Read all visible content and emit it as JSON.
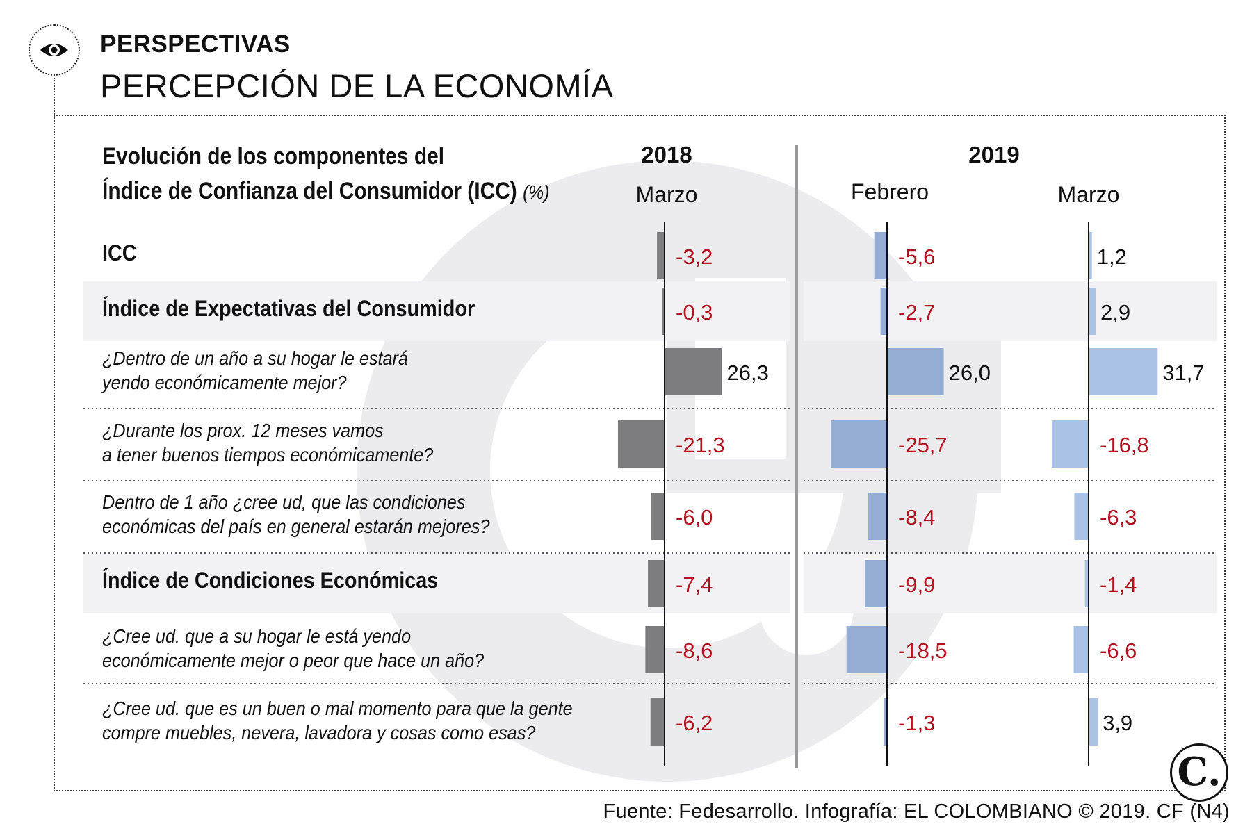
{
  "header": {
    "kicker": "PERSPECTIVAS",
    "headline": "PERCEPCIÓN DE LA ECONOMÍA"
  },
  "chart_data": {
    "type": "bar",
    "orientation": "horizontal",
    "title_line1": "Evolución de los componentes del",
    "title_line2": "Índice de Confianza del Consumidor (ICC)",
    "unit": "(%)",
    "years": [
      "2018",
      "2019"
    ],
    "series": [
      {
        "name": "Marzo 2018",
        "year": "2018",
        "month": "Marzo",
        "color": "#7d7d80",
        "values": [
          -3.2,
          -0.3,
          26.3,
          -21.3,
          -6.0,
          -7.4,
          -8.6,
          -6.2
        ],
        "labels": [
          "-3,2",
          "-0,3",
          "26,3",
          "-21,3",
          "-6,0",
          "-7,4",
          "-8,6",
          "-6,2"
        ]
      },
      {
        "name": "Febrero 2019",
        "year": "2019",
        "month": "Febrero",
        "color": "#95acd4",
        "values": [
          -5.6,
          -2.7,
          26.0,
          -25.7,
          -8.4,
          -9.9,
          -18.5,
          -1.3
        ],
        "labels": [
          "-5,6",
          "-2,7",
          "26,0",
          "-25,7",
          "-8,4",
          "-9,9",
          "-18,5",
          "-1,3"
        ]
      },
      {
        "name": "Marzo 2019",
        "year": "2019",
        "month": "Marzo",
        "color": "#a9c2e6",
        "values": [
          1.2,
          2.9,
          31.7,
          -16.8,
          -6.3,
          -1.4,
          -6.6,
          3.9
        ],
        "labels": [
          "1,2",
          "2,9",
          "31,7",
          "-16,8",
          "-6,3",
          "-1,4",
          "-6,6",
          "3,9"
        ]
      }
    ],
    "categories": [
      {
        "line1": "ICC",
        "line2": "",
        "bold": true
      },
      {
        "line1": "Índice de Expectativas del Consumidor",
        "line2": "",
        "bold": true
      },
      {
        "line1": "¿Dentro de un año a su hogar le estará",
        "line2": "yendo económicamente mejor?",
        "bold": false
      },
      {
        "line1": "¿Durante los prox. 12 meses vamos",
        "line2": "a tener buenos tiempos económicamente?",
        "bold": false
      },
      {
        "line1": "Dentro de 1 año ¿cree ud, que las condiciones",
        "line2": "económicas del país en general estarán mejores?",
        "bold": false
      },
      {
        "line1": "Índice de Condiciones Económicas",
        "line2": "",
        "bold": true
      },
      {
        "line1": "¿Cree ud. que a su hogar le está yendo",
        "line2": "económicamente mejor o peor que hace un año?",
        "bold": false
      },
      {
        "line1": "¿Cree ud. que es un buen o mal momento para que la gente",
        "line2": "compre muebles, nevera, lavadora y cosas como esas?",
        "bold": false
      }
    ],
    "negative_label_color": "#b3121f",
    "positive_label_color": "#111111"
  },
  "footer": {
    "source": "Fuente: Fedesarrollo. Infografía: EL COLOMBIANO © 2019. CF (N4)",
    "logo_letter": "C."
  }
}
